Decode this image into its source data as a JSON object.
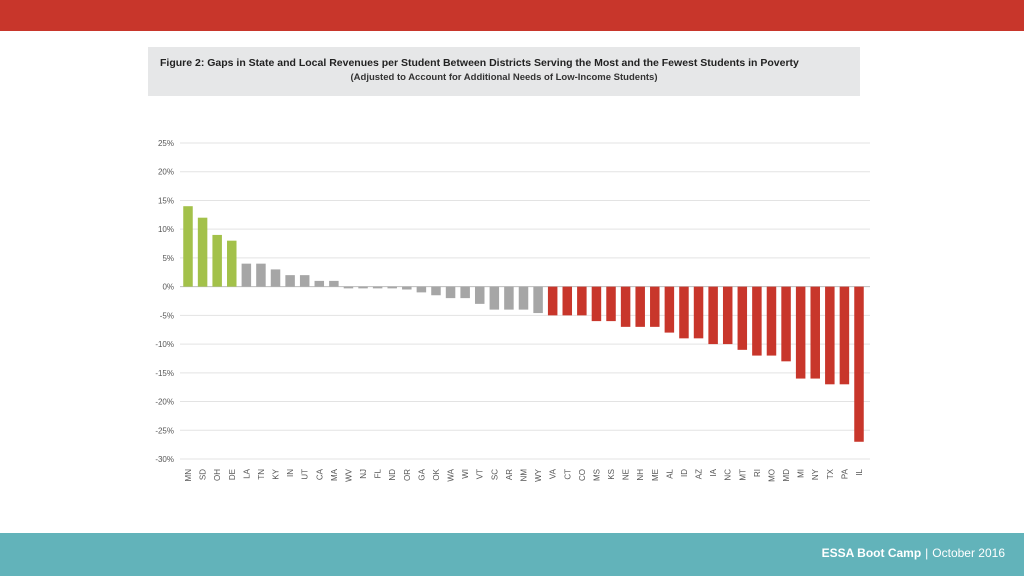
{
  "slide": {
    "footer_title": "ESSA Boot Camp",
    "footer_separator": "|",
    "footer_date": "October 2016"
  },
  "colors": {
    "top_bar": "#c8362b",
    "footer_bar": "#62b3ba",
    "positive_top": "#a3c14a",
    "neutral": "#a6a6a6",
    "negative": "#c8362b"
  },
  "chart_data": {
    "type": "bar",
    "title": "Figure 2: Gaps in State and Local Revenues per Student Between Districts Serving the Most and the Fewest Students in Poverty",
    "subtitle": "(Adjusted to Account for Additional Needs of Low-Income Students)",
    "xlabel": "",
    "ylabel": "",
    "ylim": [
      -30,
      25
    ],
    "y_ticks": [
      "25%",
      "20%",
      "15%",
      "10%",
      "5%",
      "0%",
      "-5%",
      "-10%",
      "-15%",
      "-20%",
      "-25%",
      "-30%"
    ],
    "y_tick_values": [
      25,
      20,
      15,
      10,
      5,
      0,
      -5,
      -10,
      -15,
      -20,
      -25,
      -30
    ],
    "grid": true,
    "legend": "none",
    "categories": [
      "MN",
      "SD",
      "OH",
      "DE",
      "LA",
      "TN",
      "KY",
      "IN",
      "UT",
      "CA",
      "MA",
      "WV",
      "NJ",
      "FL",
      "ND",
      "OR",
      "GA",
      "OK",
      "WA",
      "WI",
      "VT",
      "SC",
      "AR",
      "NM",
      "WY",
      "VA",
      "CT",
      "CO",
      "MS",
      "KS",
      "NE",
      "NH",
      "ME",
      "AL",
      "ID",
      "AZ",
      "IA",
      "NC",
      "MT",
      "RI",
      "MO",
      "MD",
      "MI",
      "NY",
      "TX",
      "PA",
      "IL"
    ],
    "values": [
      14,
      12,
      9,
      8,
      4,
      4,
      3,
      2,
      2,
      1,
      1,
      -0.3,
      -0.3,
      -0.3,
      -0.3,
      -0.5,
      -1,
      -1.5,
      -2,
      -2,
      -3,
      -4,
      -4,
      -4,
      -4.6,
      -5,
      -5,
      -5,
      -6,
      -6,
      -7,
      -7,
      -7,
      -8,
      -9,
      -9,
      -10,
      -10,
      -11,
      -12,
      -12,
      -13,
      -16,
      -16,
      -17,
      -17,
      -27
    ],
    "bar_groups": [
      "positive_top",
      "positive_top",
      "positive_top",
      "positive_top",
      "neutral",
      "neutral",
      "neutral",
      "neutral",
      "neutral",
      "neutral",
      "neutral",
      "neutral",
      "neutral",
      "neutral",
      "neutral",
      "neutral",
      "neutral",
      "neutral",
      "neutral",
      "neutral",
      "neutral",
      "neutral",
      "neutral",
      "neutral",
      "neutral",
      "negative",
      "negative",
      "negative",
      "negative",
      "negative",
      "negative",
      "negative",
      "negative",
      "negative",
      "negative",
      "negative",
      "negative",
      "negative",
      "negative",
      "negative",
      "negative",
      "negative",
      "negative",
      "negative",
      "negative",
      "negative",
      "negative"
    ]
  }
}
